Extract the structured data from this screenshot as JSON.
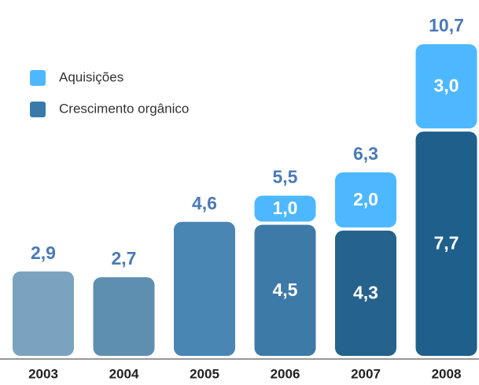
{
  "chart_data": {
    "type": "stacked_bar",
    "categories": [
      "2003",
      "2004",
      "2005",
      "2006",
      "2007",
      "2008"
    ],
    "series": [
      {
        "name": "Crescimento orgânico",
        "color": "#3a7aaa",
        "colors": [
          "#7aa3bf",
          "#5f8fb0",
          "#4a86b4",
          "#3d7aa8",
          "#25628c",
          "#1f5f8b"
        ],
        "values": [
          2.9,
          2.7,
          4.6,
          4.5,
          4.3,
          7.7
        ],
        "value_labels": [
          null,
          null,
          null,
          "4,5",
          "4,3",
          "7,7"
        ]
      },
      {
        "name": "Aquisições",
        "color": "#4db8ff",
        "values": [
          null,
          null,
          null,
          1.0,
          2.0,
          3.0
        ],
        "value_labels": [
          null,
          null,
          null,
          "1,0",
          "2,0",
          "3,0"
        ]
      }
    ],
    "totals": {
      "values": [
        2.9,
        2.7,
        4.6,
        5.5,
        6.3,
        10.7
      ],
      "value_labels": [
        "2,9",
        "2,7",
        "4,6",
        "5,5",
        "6,3",
        "10,7"
      ]
    },
    "ylim": [
      0,
      11
    ]
  }
}
